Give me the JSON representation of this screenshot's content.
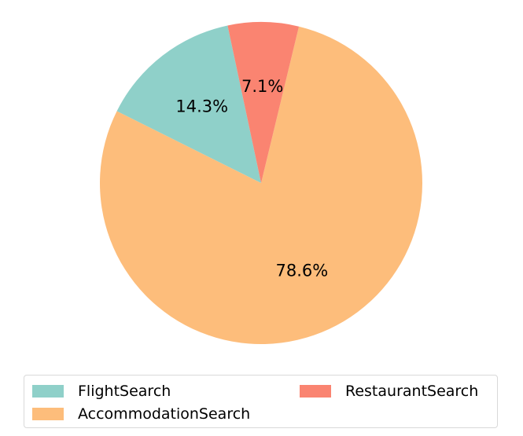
{
  "chart_data": {
    "type": "pie",
    "title": "",
    "slices": [
      {
        "label": "FlightSearch",
        "value": 14.3,
        "pct_label": "14.3%",
        "color": "#8fd0c9"
      },
      {
        "label": "AccommodationSearch",
        "value": 78.6,
        "pct_label": "78.6%",
        "color": "#fdbd7b"
      },
      {
        "label": "RestaurantSearch",
        "value": 7.1,
        "pct_label": "7.1%",
        "color": "#fa8471"
      }
    ],
    "start_angle_deg": 102,
    "direction": "counterclockwise",
    "legend_position": "bottom"
  }
}
